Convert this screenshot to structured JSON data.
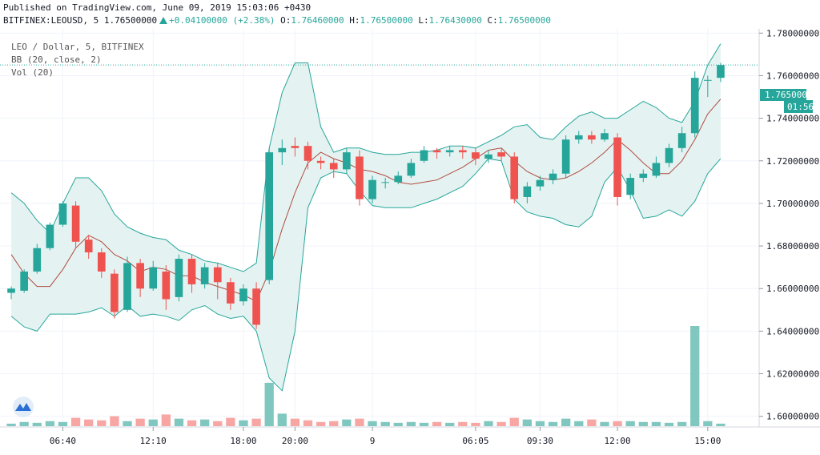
{
  "header": {
    "published": "Published on TradingView.com, June 09, 2019 15:03:06 +0430",
    "symbol": "BITFINEX:LEOUSD, 5",
    "last": "1.76500000",
    "change": "+0.04100000",
    "change_pct": "(+2.38%)",
    "o_label": "O:",
    "o": "1.76460000",
    "h_label": "H:",
    "h": "1.76500000",
    "l_label": "L:",
    "l": "1.76430000",
    "c_label": "C:",
    "c": "1.76500000"
  },
  "legend": {
    "pair": "LEO / Dollar, 5, BITFINEX",
    "bb": "BB (20, close, 2)",
    "vol": "Vol (20)"
  },
  "price_badge": "1.76500000",
  "time_badge": "01:56",
  "colors": {
    "up": "#26a69a",
    "down": "#ef5350",
    "bb_basis": "#b24b40",
    "bb_band": "#26a69a",
    "bb_fill": "#e4f3f2",
    "vol_up": "#80c7bf",
    "vol_down": "#f7a6a3"
  },
  "chart_data": {
    "type": "candlestick",
    "y_axis_ticks": [
      "1.78000000",
      "1.76000000",
      "1.74000000",
      "1.72000000",
      "1.70000000",
      "1.68000000",
      "1.66000000",
      "1.64000000",
      "1.62000000",
      "1.60000000"
    ],
    "ylim": [
      1.595,
      1.782
    ],
    "x_axis_ticks": [
      "06:40",
      "12:10",
      "18:00",
      "20:00",
      "9",
      "06:05",
      "09:30",
      "12:00",
      "15:00"
    ],
    "bb_upper": [
      1.705,
      1.7,
      1.692,
      1.686,
      1.7,
      1.712,
      1.712,
      1.706,
      1.695,
      1.689,
      1.686,
      1.684,
      1.683,
      1.678,
      1.676,
      1.673,
      1.672,
      1.67,
      1.668,
      1.672,
      1.726,
      1.752,
      1.766,
      1.766,
      1.736,
      1.724,
      1.726,
      1.726,
      1.724,
      1.723,
      1.723,
      1.724,
      1.724,
      1.725,
      1.727,
      1.727,
      1.726,
      1.729,
      1.732,
      1.736,
      1.737,
      1.731,
      1.73,
      1.736,
      1.741,
      1.743,
      1.74,
      1.74,
      1.744,
      1.748,
      1.745,
      1.74,
      1.738,
      1.748,
      1.765,
      1.775
    ],
    "bb_basis": [
      1.676,
      1.667,
      1.661,
      1.661,
      1.669,
      1.679,
      1.685,
      1.682,
      1.676,
      1.673,
      1.668,
      1.67,
      1.669,
      1.666,
      1.666,
      1.663,
      1.661,
      1.659,
      1.657,
      1.654,
      1.668,
      1.688,
      1.705,
      1.719,
      1.724,
      1.721,
      1.719,
      1.716,
      1.715,
      1.713,
      1.71,
      1.709,
      1.71,
      1.711,
      1.714,
      1.717,
      1.721,
      1.725,
      1.726,
      1.72,
      1.715,
      1.712,
      1.711,
      1.712,
      1.715,
      1.719,
      1.724,
      1.73,
      1.725,
      1.719,
      1.714,
      1.714,
      1.72,
      1.73,
      1.742,
      1.749
    ],
    "bb_lower": [
      1.647,
      1.642,
      1.64,
      1.648,
      1.648,
      1.648,
      1.649,
      1.651,
      1.647,
      1.652,
      1.647,
      1.648,
      1.647,
      1.645,
      1.65,
      1.652,
      1.648,
      1.646,
      1.647,
      1.64,
      1.618,
      1.612,
      1.64,
      1.698,
      1.712,
      1.715,
      1.714,
      1.706,
      1.699,
      1.698,
      1.698,
      1.698,
      1.7,
      1.702,
      1.705,
      1.708,
      1.714,
      1.721,
      1.72,
      1.702,
      1.696,
      1.694,
      1.693,
      1.69,
      1.689,
      1.694,
      1.71,
      1.717,
      1.706,
      1.693,
      1.694,
      1.697,
      1.694,
      1.701,
      1.714,
      1.721
    ],
    "candles": [
      [
        1.658,
        1.66,
        1.655,
        1.661
      ],
      [
        1.659,
        1.668,
        1.658,
        1.669
      ],
      [
        1.668,
        1.679,
        1.667,
        1.681
      ],
      [
        1.679,
        1.69,
        1.678,
        1.691
      ],
      [
        1.69,
        1.7,
        1.689,
        1.701
      ],
      [
        1.699,
        1.682,
        1.679,
        1.701
      ],
      [
        1.683,
        1.677,
        1.674,
        1.685
      ],
      [
        1.677,
        1.668,
        1.665,
        1.679
      ],
      [
        1.667,
        1.649,
        1.646,
        1.669
      ],
      [
        1.65,
        1.672,
        1.649,
        1.675
      ],
      [
        1.672,
        1.66,
        1.656,
        1.674
      ],
      [
        1.66,
        1.67,
        1.659,
        1.673
      ],
      [
        1.668,
        1.655,
        1.65,
        1.671
      ],
      [
        1.656,
        1.674,
        1.654,
        1.676
      ],
      [
        1.674,
        1.662,
        1.658,
        1.676
      ],
      [
        1.662,
        1.67,
        1.66,
        1.672
      ],
      [
        1.67,
        1.663,
        1.655,
        1.672
      ],
      [
        1.663,
        1.653,
        1.65,
        1.665
      ],
      [
        1.654,
        1.66,
        1.652,
        1.662
      ],
      [
        1.66,
        1.643,
        1.641,
        1.663
      ],
      [
        1.664,
        1.724,
        1.662,
        1.726
      ],
      [
        1.724,
        1.726,
        1.718,
        1.73
      ],
      [
        1.727,
        1.726,
        1.722,
        1.731
      ],
      [
        1.727,
        1.72,
        1.716,
        1.729
      ],
      [
        1.72,
        1.719,
        1.716,
        1.722
      ],
      [
        1.719,
        1.716,
        1.712,
        1.721
      ],
      [
        1.716,
        1.724,
        1.714,
        1.726
      ],
      [
        1.722,
        1.702,
        1.699,
        1.725
      ],
      [
        1.702,
        1.711,
        1.7,
        1.713
      ],
      [
        1.71,
        1.71,
        1.707,
        1.712
      ],
      [
        1.71,
        1.713,
        1.709,
        1.715
      ],
      [
        1.713,
        1.719,
        1.712,
        1.721
      ],
      [
        1.72,
        1.725,
        1.719,
        1.727
      ],
      [
        1.725,
        1.724,
        1.721,
        1.726
      ],
      [
        1.724,
        1.725,
        1.722,
        1.727
      ],
      [
        1.725,
        1.724,
        1.721,
        1.727
      ],
      [
        1.724,
        1.721,
        1.718,
        1.726
      ],
      [
        1.721,
        1.723,
        1.719,
        1.725
      ],
      [
        1.724,
        1.722,
        1.72,
        1.726
      ],
      [
        1.722,
        1.702,
        1.7,
        1.724
      ],
      [
        1.703,
        1.708,
        1.7,
        1.71
      ],
      [
        1.708,
        1.711,
        1.706,
        1.713
      ],
      [
        1.711,
        1.714,
        1.709,
        1.716
      ],
      [
        1.714,
        1.73,
        1.712,
        1.732
      ],
      [
        1.73,
        1.732,
        1.728,
        1.734
      ],
      [
        1.732,
        1.73,
        1.728,
        1.734
      ],
      [
        1.73,
        1.733,
        1.729,
        1.735
      ],
      [
        1.731,
        1.703,
        1.699,
        1.733
      ],
      [
        1.704,
        1.712,
        1.702,
        1.714
      ],
      [
        1.712,
        1.714,
        1.71,
        1.716
      ],
      [
        1.713,
        1.719,
        1.712,
        1.722
      ],
      [
        1.719,
        1.726,
        1.717,
        1.728
      ],
      [
        1.726,
        1.733,
        1.724,
        1.736
      ],
      [
        1.733,
        1.759,
        1.731,
        1.762
      ],
      [
        1.758,
        1.758,
        1.75,
        1.76
      ],
      [
        1.759,
        1.765,
        1.757,
        1.766
      ]
    ],
    "volume": [
      0.3,
      0.5,
      0.4,
      0.6,
      0.5,
      1.0,
      0.8,
      0.7,
      1.2,
      0.6,
      0.9,
      0.8,
      1.4,
      0.9,
      0.7,
      0.8,
      0.6,
      1.0,
      0.7,
      0.9,
      5.2,
      1.5,
      0.9,
      0.7,
      0.5,
      0.6,
      0.8,
      0.9,
      0.6,
      0.5,
      0.4,
      0.5,
      0.4,
      0.5,
      0.4,
      0.5,
      0.4,
      0.6,
      0.5,
      1.0,
      0.8,
      0.6,
      0.5,
      0.9,
      0.6,
      0.8,
      0.5,
      0.6,
      0.6,
      0.5,
      0.5,
      0.4,
      0.5,
      12.0,
      0.6,
      0.3
    ]
  }
}
